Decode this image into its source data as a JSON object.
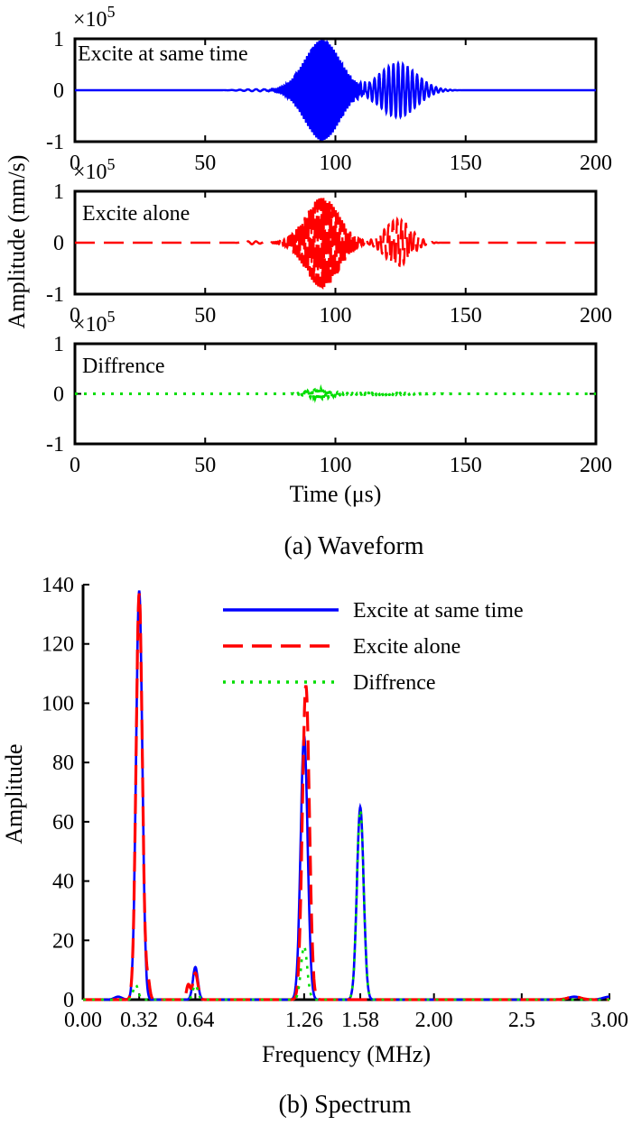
{
  "waveform": {
    "caption": "(a) Waveform",
    "ylabel": "Amplitude (mm/s)",
    "xlabel": "Time (μs)",
    "scale_base": "×10",
    "scale_exp": "5",
    "xlim": [
      0,
      200
    ],
    "ylim": [
      -1,
      1
    ],
    "xticks": [
      "0",
      "50",
      "100",
      "150",
      "200"
    ],
    "yticks": [
      "1",
      "0",
      "-1"
    ],
    "panels": [
      {
        "label": "Excite at same time",
        "color": "#0000ff",
        "style": "solid"
      },
      {
        "label": "Excite alone",
        "color": "#ff0000",
        "style": "dashed"
      },
      {
        "label": "Diffrence",
        "color": "#00dd00",
        "style": "dotted"
      }
    ]
  },
  "chart_data": {
    "type": "line",
    "caption": "(b) Spectrum",
    "xlabel": "Frequency (MHz)",
    "ylabel": "Amplitude",
    "xlim": [
      0,
      3
    ],
    "ylim": [
      0,
      140
    ],
    "xticks": [
      "0.00",
      "0.32",
      "0.64",
      "1.26",
      "1.58",
      "2.00",
      "2.5",
      "3.00"
    ],
    "yticks": [
      "0",
      "20",
      "40",
      "60",
      "80",
      "100",
      "120",
      "140"
    ],
    "legend_position": "top-right",
    "series": [
      {
        "name": "Excite at same time",
        "color": "#0000ff",
        "style": "solid",
        "peaks": [
          [
            0.32,
            138,
            0.025
          ],
          [
            0.64,
            11,
            0.02
          ],
          [
            1.26,
            89,
            0.028
          ],
          [
            1.58,
            65,
            0.027
          ],
          [
            0.2,
            1,
            0.03
          ],
          [
            2.8,
            1,
            0.05
          ],
          [
            3.0,
            1,
            0.05
          ]
        ]
      },
      {
        "name": "Excite alone",
        "color": "#ff0000",
        "style": "dashed",
        "peaks": [
          [
            0.32,
            137,
            0.025
          ],
          [
            0.64,
            9,
            0.02
          ],
          [
            1.27,
            106,
            0.028
          ],
          [
            0.37,
            6,
            0.015
          ],
          [
            0.6,
            5,
            0.015
          ],
          [
            2.8,
            1,
            0.05
          ]
        ]
      },
      {
        "name": "Diffrence",
        "color": "#00dd00",
        "style": "dotted",
        "peaks": [
          [
            0.3,
            5,
            0.02
          ],
          [
            0.64,
            5,
            0.02
          ],
          [
            1.26,
            18,
            0.025
          ],
          [
            1.58,
            64,
            0.027
          ]
        ]
      }
    ]
  }
}
